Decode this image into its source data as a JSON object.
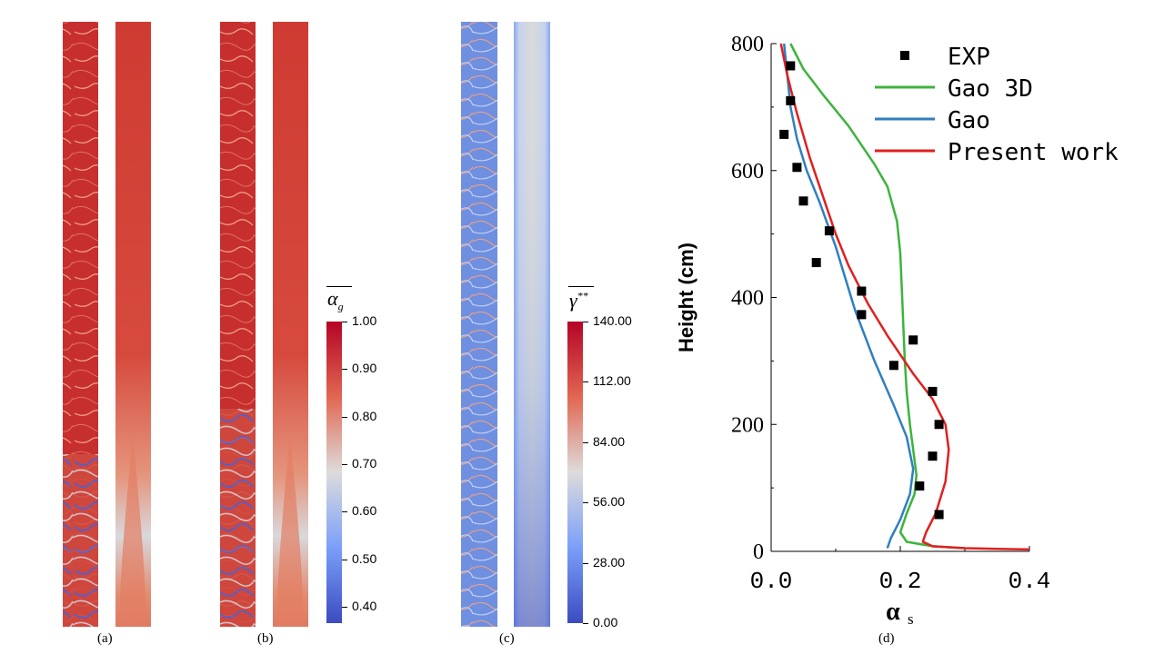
{
  "panels": {
    "a": "(a)",
    "b": "(b)",
    "c": "(c)",
    "d": "(d)"
  },
  "colorbar_alpha": {
    "symbol": "α",
    "subscript": "g",
    "ticks": [
      "1.00",
      "0.90",
      "0.80",
      "0.70",
      "0.60",
      "0.50",
      "0.40"
    ]
  },
  "colorbar_gamma": {
    "symbol": "γ",
    "superscript": "**",
    "ticks": [
      "140.00",
      "112.00",
      "84.00",
      "56.00",
      "28.00",
      "0.00"
    ]
  },
  "colors": {
    "cmap_high": "#b40426",
    "cmap_mid": "#dddcdc",
    "cmap_low": "#3b4cc0",
    "exp": "#000000",
    "gao3d": "#3cb43c",
    "gao": "#2f7fc1",
    "present": "#e02020"
  },
  "chart_data": {
    "type": "line",
    "xlabel": "α",
    "xlabel_sub": "s",
    "ylabel": "Height (cm)",
    "xlim": [
      0.0,
      0.4
    ],
    "ylim": [
      0,
      800
    ],
    "xticks": [
      "0.0",
      "0.2",
      "0.4"
    ],
    "yticks": [
      "0",
      "200",
      "400",
      "600",
      "800"
    ],
    "legend_position": "top-right",
    "series": [
      {
        "name": "EXP",
        "kind": "scatter",
        "x": [
          0.03,
          0.03,
          0.02,
          0.04,
          0.05,
          0.09,
          0.07,
          0.14,
          0.14,
          0.22,
          0.19,
          0.25,
          0.26,
          0.25,
          0.23,
          0.26
        ],
        "y": [
          765,
          710,
          657,
          605,
          552,
          505,
          455,
          410,
          373,
          333,
          293,
          252,
          200,
          150,
          103,
          58
        ]
      },
      {
        "name": "Gao 3D",
        "kind": "line",
        "x": [
          0.03,
          0.05,
          0.08,
          0.12,
          0.16,
          0.18,
          0.195,
          0.2,
          0.203,
          0.205,
          0.207,
          0.21,
          0.215,
          0.22,
          0.225,
          0.222,
          0.21,
          0.2,
          0.21,
          0.25,
          0.3
        ],
        "y": [
          800,
          760,
          720,
          670,
          610,
          575,
          520,
          470,
          400,
          350,
          300,
          250,
          200,
          160,
          120,
          90,
          60,
          30,
          15,
          8,
          5
        ]
      },
      {
        "name": "Gao",
        "kind": "line",
        "x": [
          0.02,
          0.025,
          0.03,
          0.04,
          0.055,
          0.075,
          0.1,
          0.13,
          0.16,
          0.19,
          0.21,
          0.22,
          0.215,
          0.2,
          0.185,
          0.18
        ],
        "y": [
          800,
          750,
          700,
          650,
          600,
          550,
          480,
          380,
          300,
          230,
          180,
          130,
          90,
          50,
          20,
          5
        ]
      },
      {
        "name": "Present work",
        "kind": "line",
        "x": [
          0.015,
          0.025,
          0.04,
          0.06,
          0.08,
          0.1,
          0.12,
          0.15,
          0.18,
          0.22,
          0.25,
          0.27,
          0.275,
          0.27,
          0.255,
          0.24,
          0.235,
          0.25,
          0.3,
          0.35,
          0.4
        ],
        "y": [
          800,
          750,
          690,
          620,
          560,
          500,
          450,
          390,
          340,
          280,
          240,
          200,
          160,
          110,
          60,
          30,
          15,
          8,
          5,
          4,
          3
        ]
      }
    ]
  }
}
